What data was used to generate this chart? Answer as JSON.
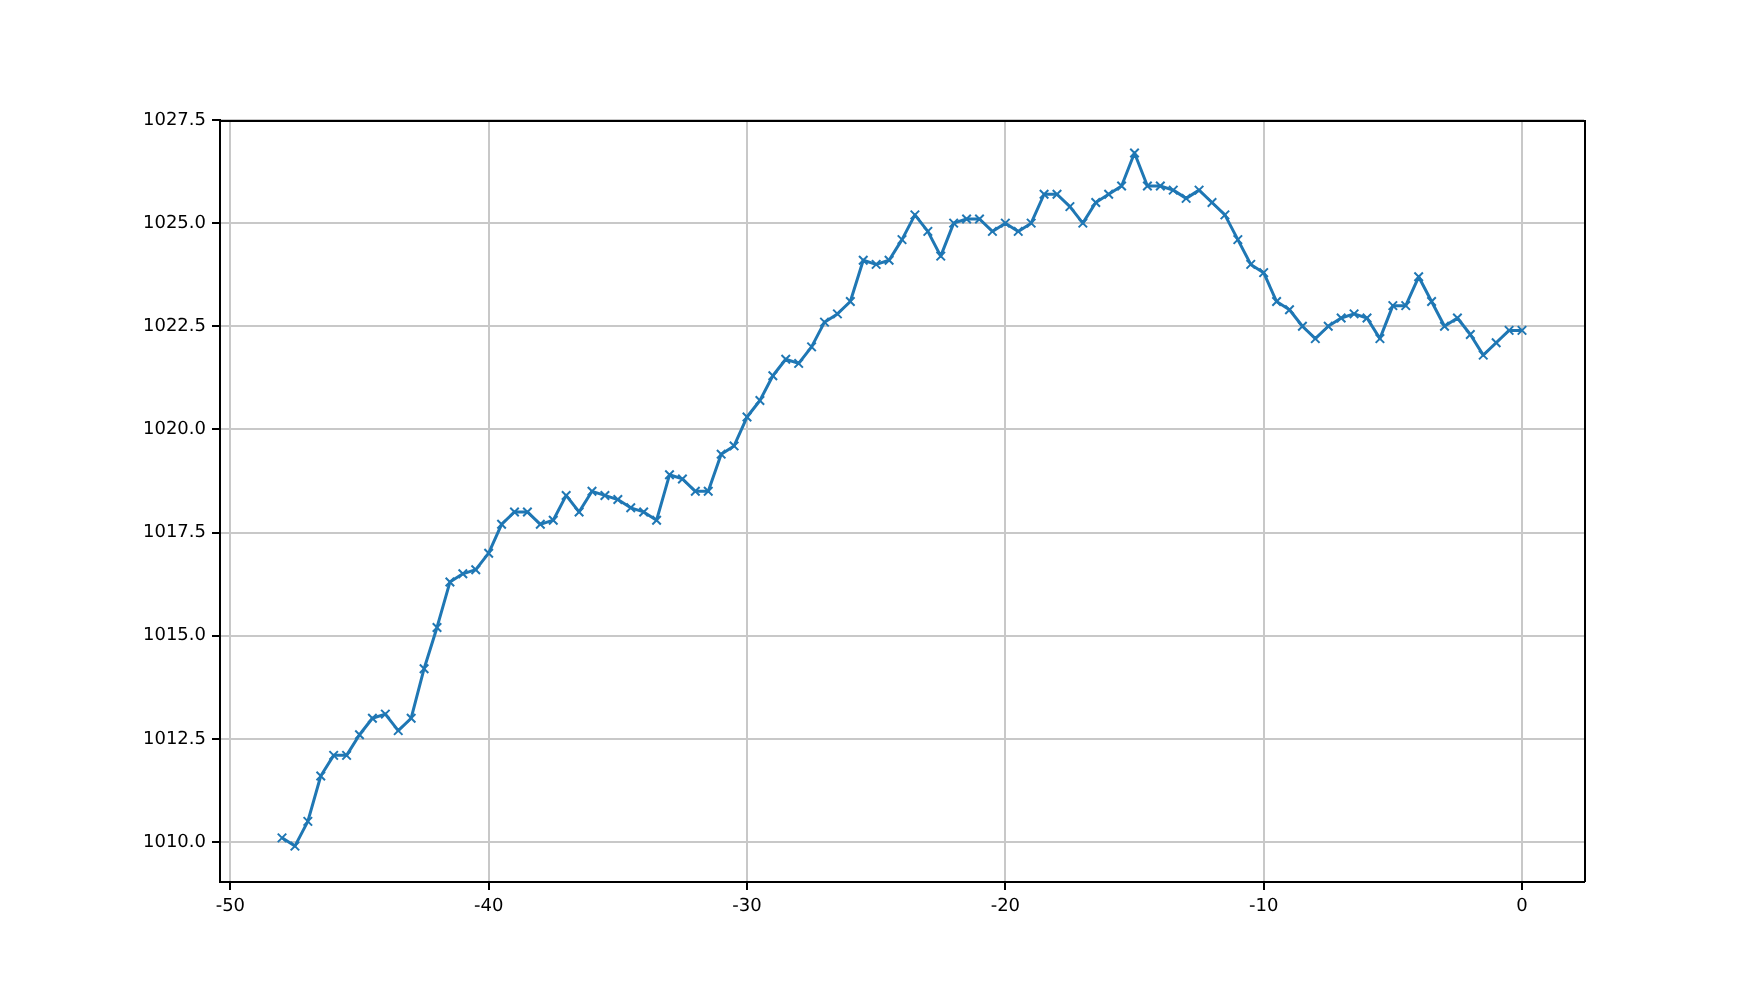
{
  "chart_data": {
    "type": "line",
    "x": [
      -48,
      -47.5,
      -47,
      -46.5,
      -46,
      -45.5,
      -45,
      -44.5,
      -44,
      -43.5,
      -43,
      -42.5,
      -42,
      -41.5,
      -41,
      -40.5,
      -40,
      -39.5,
      -39,
      -38.5,
      -38,
      -37.5,
      -37,
      -36.5,
      -36,
      -35.5,
      -35,
      -34.5,
      -34,
      -33.5,
      -33,
      -32.5,
      -32,
      -31.5,
      -31,
      -30.5,
      -30,
      -29.5,
      -29,
      -28.5,
      -28,
      -27.5,
      -27,
      -26.5,
      -26,
      -25.5,
      -25,
      -24.5,
      -24,
      -23.5,
      -23,
      -22.5,
      -22,
      -21.5,
      -21,
      -20.5,
      -20,
      -19.5,
      -19,
      -18.5,
      -18,
      -17.5,
      -17,
      -16.5,
      -16,
      -15.5,
      -15,
      -14.5,
      -14,
      -13.5,
      -13,
      -12.5,
      -12,
      -11.5,
      -11,
      -10.5,
      -10,
      -9.5,
      -9,
      -8.5,
      -8,
      -7.5,
      -7,
      -6.5,
      -6,
      -5.5,
      -5,
      -4.5,
      -4,
      -3.5,
      -3,
      -2.5,
      -2,
      -1.5,
      -1,
      -0.5,
      0
    ],
    "series": [
      {
        "color": "#1f77b4",
        "values": [
          1010.1,
          1009.9,
          1010.5,
          1011.6,
          1012.1,
          1012.1,
          1012.6,
          1013.0,
          1013.1,
          1012.7,
          1013.0,
          1014.2,
          1015.2,
          1016.3,
          1016.5,
          1016.6,
          1017.0,
          1017.7,
          1018.0,
          1018.0,
          1017.7,
          1017.8,
          1018.4,
          1018.0,
          1018.5,
          1018.4,
          1018.3,
          1018.1,
          1018.0,
          1017.8,
          1018.9,
          1018.8,
          1018.5,
          1018.5,
          1019.4,
          1019.6,
          1020.3,
          1020.7,
          1021.3,
          1021.7,
          1021.6,
          1022.0,
          1022.6,
          1022.8,
          1023.1,
          1024.1,
          1024.0,
          1024.1,
          1024.6,
          1025.2,
          1024.8,
          1024.2,
          1025.0,
          1025.1,
          1025.1,
          1024.8,
          1025.0,
          1024.8,
          1025.0,
          1025.7,
          1025.7,
          1025.4,
          1025.0,
          1025.5,
          1025.7,
          1025.9,
          1026.7,
          1025.9,
          1025.9,
          1025.8,
          1025.6,
          1025.8,
          1025.5,
          1025.2,
          1024.6,
          1024.0,
          1023.8,
          1023.1,
          1022.9,
          1022.5,
          1022.2,
          1022.5,
          1022.7,
          1022.8,
          1022.7,
          1022.2,
          1023.0,
          1023.0,
          1023.7,
          1023.1,
          1022.5,
          1022.7,
          1022.3,
          1021.8,
          1022.1,
          1022.4,
          1022.4
        ]
      }
    ],
    "xlim": [
      -50.4,
      2.4
    ],
    "ylim": [
      1009.03,
      1027.5
    ],
    "xticks": [
      -50,
      -40,
      -30,
      -20,
      -10,
      0
    ],
    "yticks": [
      {
        "value": 1010,
        "label": "1010.0"
      },
      {
        "value": 1012.5,
        "label": "1012.5"
      },
      {
        "value": 1015,
        "label": "1015.0"
      },
      {
        "value": 1017.5,
        "label": "1017.5"
      },
      {
        "value": 1020,
        "label": "1020.0"
      },
      {
        "value": 1022.5,
        "label": "1022.5"
      },
      {
        "value": 1025,
        "label": "1025.0"
      },
      {
        "value": 1027.5,
        "label": "1027.5"
      }
    ],
    "grid": true,
    "marker": "cross",
    "line_style": "solid"
  }
}
